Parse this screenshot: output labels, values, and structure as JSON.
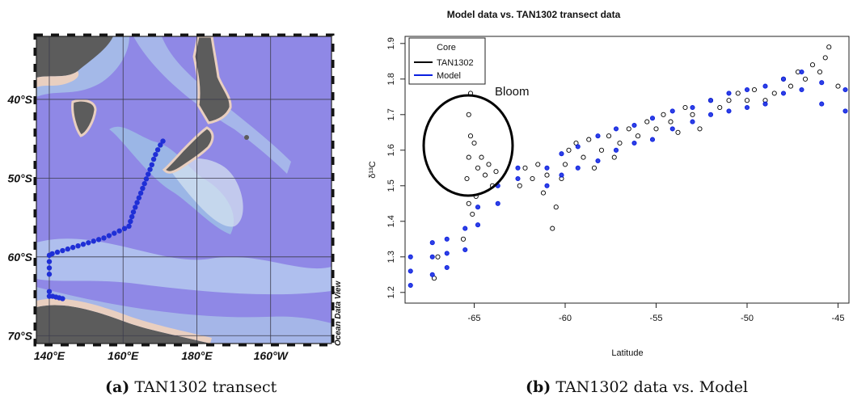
{
  "map": {
    "lat_labels": [
      "40°S",
      "50°S",
      "60°S",
      "70°S"
    ],
    "lon_labels": [
      "140°E",
      "160°E",
      "180°E",
      "160°W"
    ],
    "watermark": "Ocean Data View",
    "colors": {
      "ocean": "#8f88e6",
      "land": "#5c5c5c",
      "shelf": "#e9cfc0",
      "track": "#1f2fd6"
    },
    "track": [
      [
        170.8,
        -45.3
      ],
      [
        170.1,
        -45.8
      ],
      [
        169.4,
        -46.4
      ],
      [
        168.8,
        -47.0
      ],
      [
        168.3,
        -47.6
      ],
      [
        167.8,
        -48.3
      ],
      [
        167.3,
        -48.9
      ],
      [
        166.8,
        -49.5
      ],
      [
        166.3,
        -50.1
      ],
      [
        165.8,
        -50.7
      ],
      [
        165.3,
        -51.3
      ],
      [
        164.8,
        -51.9
      ],
      [
        164.3,
        -52.5
      ],
      [
        163.8,
        -53.1
      ],
      [
        163.3,
        -53.7
      ],
      [
        162.8,
        -54.3
      ],
      [
        162.4,
        -54.9
      ],
      [
        162.0,
        -55.5
      ],
      [
        161.6,
        -56.1
      ],
      [
        160.4,
        -56.4
      ],
      [
        159.0,
        -56.7
      ],
      [
        157.6,
        -57.0
      ],
      [
        156.2,
        -57.3
      ],
      [
        154.8,
        -57.6
      ],
      [
        153.4,
        -57.8
      ],
      [
        152.0,
        -58.0
      ],
      [
        150.6,
        -58.2
      ],
      [
        149.2,
        -58.4
      ],
      [
        147.8,
        -58.6
      ],
      [
        146.4,
        -58.8
      ],
      [
        145.0,
        -59.0
      ],
      [
        143.6,
        -59.2
      ],
      [
        142.2,
        -59.4
      ],
      [
        140.8,
        -59.6
      ],
      [
        140.0,
        -59.8
      ],
      [
        140.0,
        -60.6
      ],
      [
        140.0,
        -61.4
      ],
      [
        140.0,
        -62.2
      ],
      [
        140.0,
        -64.4
      ],
      [
        140.0,
        -65.0
      ],
      [
        140.9,
        -65.0
      ],
      [
        141.8,
        -65.1
      ],
      [
        142.7,
        -65.2
      ],
      [
        143.6,
        -65.3
      ]
    ]
  },
  "chart_data": {
    "type": "scatter",
    "title": "Model data vs. TAN1302 transect data",
    "xlabel": "Latitude",
    "ylabel": "δ¹³C",
    "xlim": [
      -68.8,
      -44.4
    ],
    "ylim": [
      1.17,
      1.92
    ],
    "x_ticks": [
      -65,
      -60,
      -55,
      -50,
      -45
    ],
    "y_ticks": [
      1.2,
      1.3,
      1.4,
      1.5,
      1.6,
      1.7,
      1.8,
      1.9
    ],
    "legend": {
      "title": "Core",
      "position": "top-left"
    },
    "annotation": "Bloom",
    "series": [
      {
        "name": "TAN1302",
        "color": "#000000",
        "points": [
          [
            -67.2,
            1.24
          ],
          [
            -67.0,
            1.3
          ],
          [
            -65.6,
            1.35
          ],
          [
            -65.3,
            1.45
          ],
          [
            -65.4,
            1.52
          ],
          [
            -65.3,
            1.58
          ],
          [
            -65.2,
            1.64
          ],
          [
            -65.3,
            1.7
          ],
          [
            -65.2,
            1.76
          ],
          [
            -65.0,
            1.62
          ],
          [
            -64.8,
            1.55
          ],
          [
            -64.6,
            1.58
          ],
          [
            -64.4,
            1.53
          ],
          [
            -64.2,
            1.56
          ],
          [
            -64.0,
            1.5
          ],
          [
            -63.8,
            1.54
          ],
          [
            -65.1,
            1.42
          ],
          [
            -64.9,
            1.47
          ],
          [
            -62.5,
            1.5
          ],
          [
            -62.2,
            1.55
          ],
          [
            -61.8,
            1.52
          ],
          [
            -61.5,
            1.56
          ],
          [
            -61.2,
            1.48
          ],
          [
            -61.0,
            1.53
          ],
          [
            -60.7,
            1.38
          ],
          [
            -60.5,
            1.44
          ],
          [
            -60.2,
            1.52
          ],
          [
            -60.0,
            1.56
          ],
          [
            -59.8,
            1.6
          ],
          [
            -59.4,
            1.62
          ],
          [
            -59.0,
            1.58
          ],
          [
            -58.7,
            1.63
          ],
          [
            -58.4,
            1.55
          ],
          [
            -58.0,
            1.6
          ],
          [
            -57.6,
            1.64
          ],
          [
            -57.3,
            1.58
          ],
          [
            -57.0,
            1.62
          ],
          [
            -56.5,
            1.66
          ],
          [
            -56.0,
            1.64
          ],
          [
            -55.5,
            1.68
          ],
          [
            -55.0,
            1.66
          ],
          [
            -54.6,
            1.7
          ],
          [
            -54.2,
            1.68
          ],
          [
            -53.8,
            1.65
          ],
          [
            -53.4,
            1.72
          ],
          [
            -53.0,
            1.7
          ],
          [
            -52.6,
            1.66
          ],
          [
            -52.0,
            1.74
          ],
          [
            -51.5,
            1.72
          ],
          [
            -51.0,
            1.74
          ],
          [
            -50.5,
            1.76
          ],
          [
            -50.0,
            1.74
          ],
          [
            -49.6,
            1.77
          ],
          [
            -49.0,
            1.74
          ],
          [
            -48.5,
            1.76
          ],
          [
            -48.0,
            1.8
          ],
          [
            -47.6,
            1.78
          ],
          [
            -47.2,
            1.82
          ],
          [
            -46.8,
            1.8
          ],
          [
            -46.4,
            1.84
          ],
          [
            -46.0,
            1.82
          ],
          [
            -45.7,
            1.86
          ],
          [
            -45.5,
            1.89
          ],
          [
            -45.0,
            1.78
          ]
        ]
      },
      {
        "name": "Model",
        "color": "#0a1fe0",
        "points": [
          [
            -68.5,
            1.22
          ],
          [
            -68.5,
            1.26
          ],
          [
            -68.5,
            1.3
          ],
          [
            -67.3,
            1.25
          ],
          [
            -67.3,
            1.3
          ],
          [
            -67.3,
            1.34
          ],
          [
            -66.5,
            1.27
          ],
          [
            -66.5,
            1.31
          ],
          [
            -66.5,
            1.35
          ],
          [
            -65.5,
            1.32
          ],
          [
            -65.5,
            1.38
          ],
          [
            -64.8,
            1.39
          ],
          [
            -64.8,
            1.44
          ],
          [
            -63.7,
            1.45
          ],
          [
            -63.7,
            1.5
          ],
          [
            -62.6,
            1.52
          ],
          [
            -62.6,
            1.55
          ],
          [
            -61.0,
            1.5
          ],
          [
            -61.0,
            1.55
          ],
          [
            -60.2,
            1.53
          ],
          [
            -60.2,
            1.59
          ],
          [
            -59.3,
            1.55
          ],
          [
            -59.3,
            1.61
          ],
          [
            -58.2,
            1.57
          ],
          [
            -58.2,
            1.64
          ],
          [
            -57.2,
            1.6
          ],
          [
            -57.2,
            1.66
          ],
          [
            -56.2,
            1.62
          ],
          [
            -56.2,
            1.67
          ],
          [
            -55.2,
            1.63
          ],
          [
            -55.2,
            1.69
          ],
          [
            -54.1,
            1.66
          ],
          [
            -54.1,
            1.71
          ],
          [
            -53.0,
            1.68
          ],
          [
            -53.0,
            1.72
          ],
          [
            -52.0,
            1.7
          ],
          [
            -52.0,
            1.74
          ],
          [
            -51.0,
            1.71
          ],
          [
            -51.0,
            1.76
          ],
          [
            -50.0,
            1.72
          ],
          [
            -50.0,
            1.77
          ],
          [
            -49.0,
            1.73
          ],
          [
            -49.0,
            1.78
          ],
          [
            -48.0,
            1.76
          ],
          [
            -48.0,
            1.8
          ],
          [
            -47.0,
            1.77
          ],
          [
            -47.0,
            1.82
          ],
          [
            -45.9,
            1.73
          ],
          [
            -45.9,
            1.79
          ],
          [
            -44.6,
            1.71
          ],
          [
            -44.6,
            1.77
          ]
        ]
      }
    ]
  },
  "captions": {
    "a_tag": "(a)",
    "a_text": "TAN1302 transect",
    "b_tag": "(b)",
    "b_text": "TAN1302 data vs. Model"
  }
}
